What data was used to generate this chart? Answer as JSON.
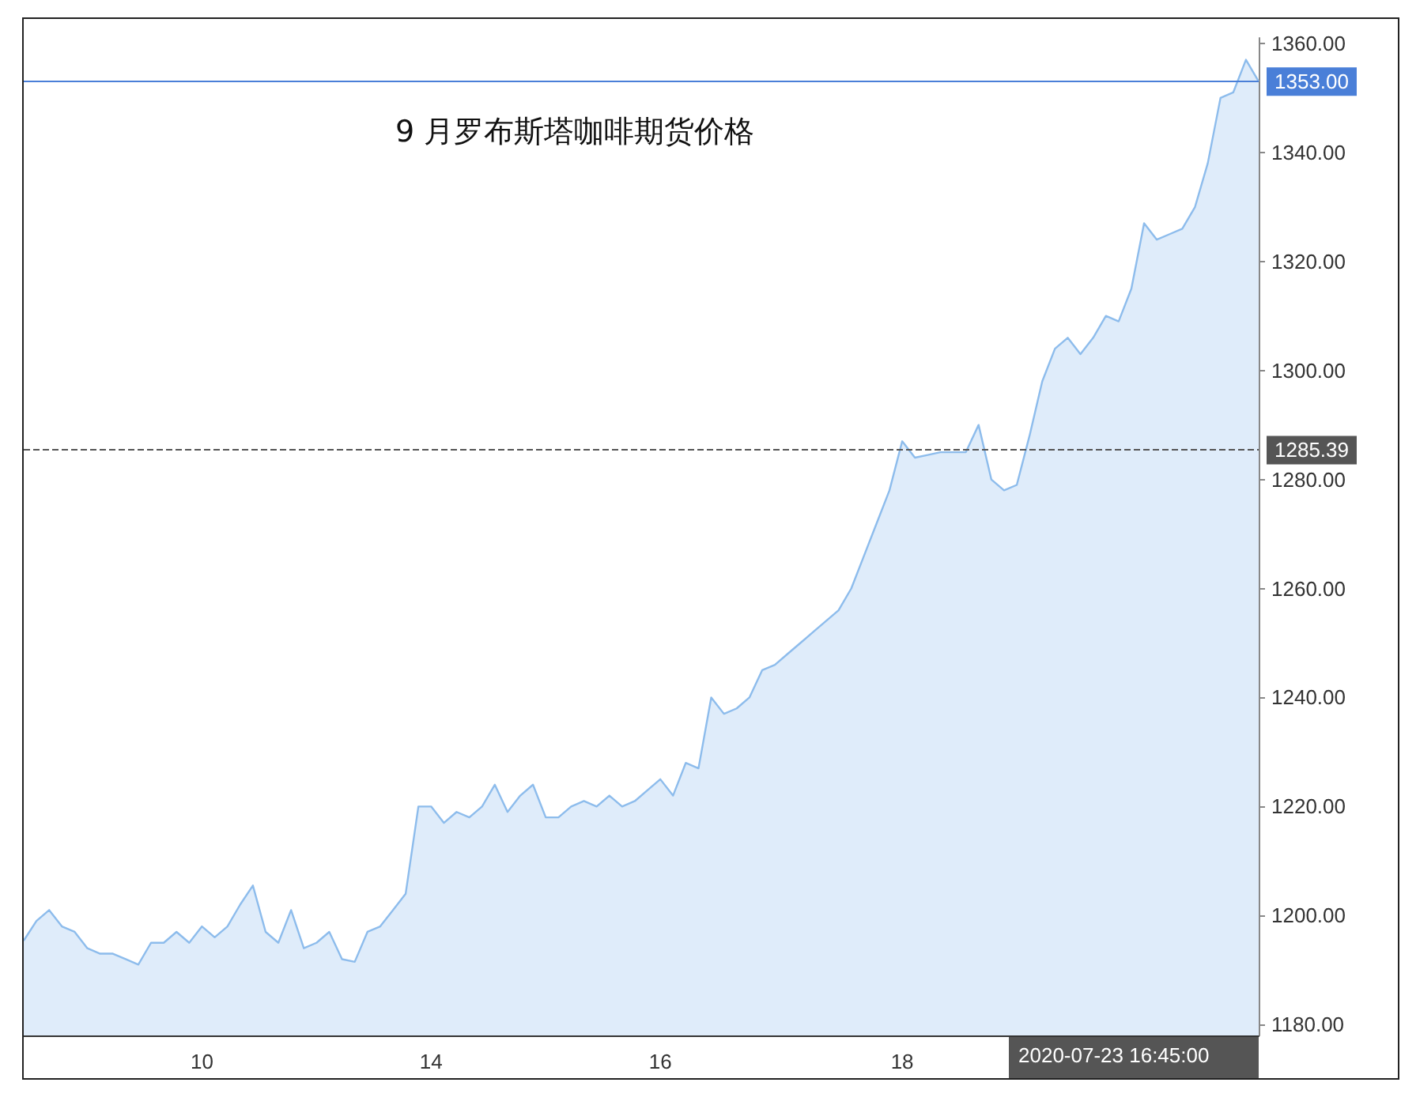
{
  "chart_data": {
    "type": "area",
    "title": "9 月罗布斯塔咖啡期货价格",
    "categories": [
      null,
      null,
      null,
      null,
      null,
      null,
      null,
      null,
      null,
      null,
      null,
      null,
      null,
      null,
      "10",
      null,
      null,
      null,
      null,
      null,
      null,
      null,
      null,
      null,
      null,
      null,
      null,
      null,
      null,
      null,
      null,
      null,
      "14",
      null,
      null,
      null,
      null,
      null,
      null,
      null,
      null,
      null,
      null,
      null,
      null,
      null,
      null,
      null,
      null,
      null,
      "16",
      null,
      null,
      null,
      null,
      null,
      null,
      null,
      null,
      null,
      null,
      null,
      null,
      null,
      null,
      null,
      null,
      null,
      null,
      "18",
      null,
      null,
      null,
      null,
      null,
      null,
      null,
      null,
      null,
      null,
      null,
      null,
      null,
      null,
      null,
      null,
      null,
      null,
      null,
      null,
      null,
      null,
      null,
      null,
      null,
      null,
      null,
      null
    ],
    "series": [
      {
        "color": "#8dbcec",
        "values": [
          1195.4,
          1199,
          1201,
          1198,
          1197,
          1194,
          1193,
          1193,
          1192,
          1191,
          1195,
          1195,
          1197,
          1195,
          1198,
          1196,
          1198,
          1202,
          1205.5,
          1197,
          1195,
          1201,
          1194,
          1195,
          1197,
          1192,
          1191.5,
          1197,
          1198,
          1201,
          1204,
          1220,
          1220,
          1217,
          1219,
          1218,
          1220,
          1224,
          1219,
          1222,
          1224,
          1218,
          1218,
          1220,
          1221,
          1220,
          1222,
          1220,
          1221,
          1223,
          1225,
          1222,
          1228,
          1227,
          1240,
          1237,
          1238,
          1240,
          1245,
          1246,
          1248,
          1250,
          1252,
          1254,
          1256,
          1260,
          1266,
          1272,
          1278,
          1287,
          1284,
          1284.5,
          1285,
          1285,
          1285,
          1290,
          1280,
          1278,
          1279,
          1288,
          1298,
          1304,
          1306,
          1303,
          1306,
          1310,
          1309,
          1315,
          1327,
          1324,
          1325,
          1326,
          1330,
          1338,
          1350,
          1351,
          1357,
          1353
        ]
      }
    ],
    "ylim": [
      1178,
      1361
    ],
    "yticks": [
      {
        "value": 1180,
        "label": "1180.00"
      },
      {
        "value": 1200,
        "label": "1200.00"
      },
      {
        "value": 1220,
        "label": "1220.00"
      },
      {
        "value": 1240,
        "label": "1240.00"
      },
      {
        "value": 1260,
        "label": "1260.00"
      },
      {
        "value": 1280,
        "label": "1280.00"
      },
      {
        "value": 1300,
        "label": "1300.00"
      },
      {
        "value": 1320,
        "label": "1320.00"
      },
      {
        "value": 1340,
        "label": "1340.00"
      },
      {
        "value": 1360,
        "label": "1360.00"
      }
    ],
    "ref_lines": [
      {
        "axis": "y",
        "value": 1353,
        "label": "1353.00",
        "color": "#4a7fd8",
        "line_style": "solid"
      },
      {
        "axis": "y",
        "value": 1285.39,
        "label": "1285.39",
        "color": "#555555",
        "line_style": "dashed"
      }
    ],
    "annotations": [
      "2020-07-23 16:45:00"
    ],
    "grid": false,
    "marker": "none",
    "line_style": "solid"
  }
}
